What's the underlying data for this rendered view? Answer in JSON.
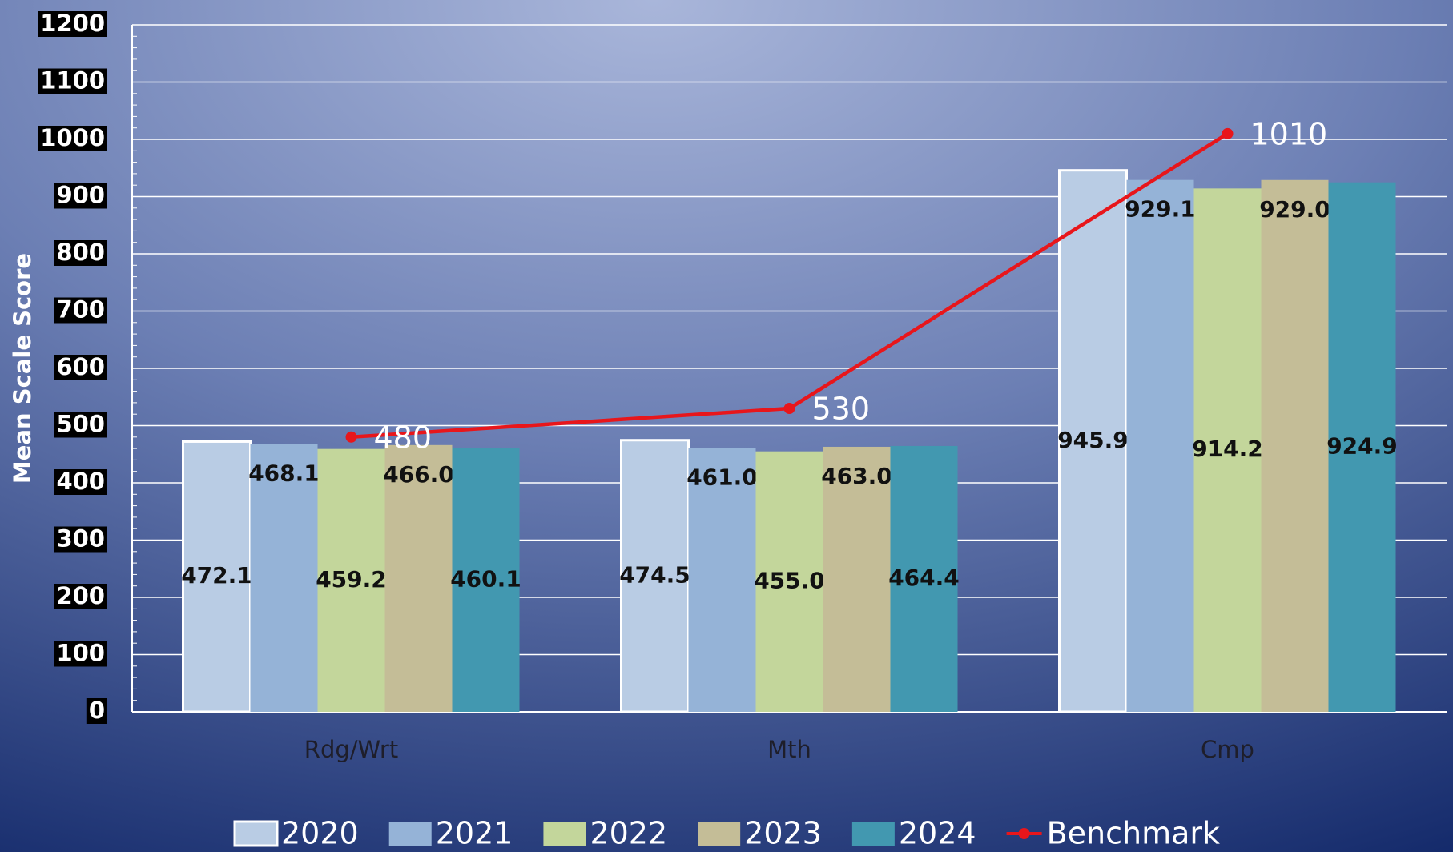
{
  "chart_data": {
    "type": "bar",
    "y_label": "Mean Scale Score",
    "categories": [
      "Rdg/Wrt",
      "Mth",
      "Cmp"
    ],
    "series": [
      {
        "name": "2020",
        "color": "#b9cce4",
        "values": [
          472.1,
          474.5,
          945.9
        ],
        "value_labels": [
          "472.1",
          "474.5",
          "945.9"
        ]
      },
      {
        "name": "2021",
        "color": "#95b3d7",
        "values": [
          468.1,
          461.0,
          929.1
        ],
        "value_labels": [
          "468.1",
          "461.0",
          "929.1"
        ]
      },
      {
        "name": "2022",
        "color": "#c3d69b",
        "values": [
          459.2,
          455.0,
          914.2
        ],
        "value_labels": [
          "459.2",
          "455.0",
          "914.2"
        ]
      },
      {
        "name": "2023",
        "color": "#c4bd97",
        "values": [
          466.0,
          463.0,
          929.0
        ],
        "value_labels": [
          "466.0",
          "463.0",
          "929.0"
        ]
      },
      {
        "name": "2024",
        "color": "#4298b0",
        "values": [
          460.1,
          464.4,
          924.9
        ],
        "value_labels": [
          "460.1",
          "464.4",
          "924.9"
        ]
      },
      {
        "name": "Benchmark",
        "type": "line",
        "color": "#e8161b",
        "values": [
          480,
          530,
          1010
        ]
      }
    ],
    "ylim": [
      0,
      1200
    ],
    "yticks": [
      0,
      100,
      200,
      300,
      400,
      500,
      600,
      700,
      800,
      900,
      1000,
      1100,
      1200
    ],
    "grid": true,
    "legend": "bottom"
  }
}
